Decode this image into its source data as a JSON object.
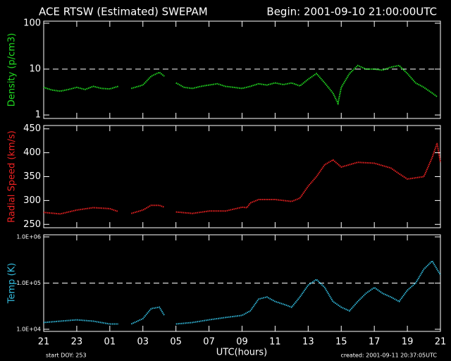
{
  "header": {
    "title": "ACE RTSW (Estimated) SWEPAM",
    "begin": "Begin: 2001-09-10 21:00:00UTC"
  },
  "footer": {
    "xlabel": "UTC(hours)",
    "start": "start DOY: 253",
    "created": "created: 2001-09-11 20:37:05UTC"
  },
  "chart_data": [
    {
      "type": "line",
      "ylabel": "Density (p/cm3)",
      "color": "#22dd22",
      "log": true,
      "reference_line": 10,
      "xlim": [
        0,
        24
      ],
      "xticks": [
        0,
        2,
        4,
        6,
        8,
        10,
        12,
        14,
        16,
        18,
        20,
        22,
        24
      ],
      "ylim": [
        0.84,
        111
      ],
      "yticks": [
        1,
        10,
        100
      ],
      "x": [
        0,
        0.5,
        1,
        1.5,
        2,
        2.5,
        3,
        3.5,
        4,
        4.5,
        4.9,
        5.3,
        6,
        6.5,
        7,
        7.3,
        7.6,
        8,
        8.5,
        9,
        9.5,
        10,
        10.5,
        11,
        11.5,
        12,
        12.5,
        13,
        13.5,
        14,
        14.5,
        15,
        15.5,
        16,
        16.5,
        17,
        17.5,
        17.8,
        18,
        18.5,
        19,
        19.5,
        20,
        20.5,
        21,
        21.5,
        22,
        22.5,
        23,
        23.5,
        23.8
      ],
      "values": [
        4,
        3.5,
        3.3,
        3.6,
        4,
        3.6,
        4.2,
        3.8,
        3.7,
        4.2,
        null,
        3.8,
        4.5,
        7,
        8.5,
        7,
        null,
        5,
        4,
        3.8,
        4.2,
        4.5,
        4.8,
        4.2,
        4,
        3.8,
        4.2,
        4.8,
        4.5,
        5,
        4.6,
        5,
        4.3,
        6,
        8,
        5,
        3,
        1.8,
        4,
        8,
        12,
        10,
        10,
        9.5,
        11,
        12,
        8,
        5,
        4,
        3,
        2.5
      ]
    },
    {
      "type": "line",
      "ylabel": "Radial Speed (km/s)",
      "color": "#ee2222",
      "log": false,
      "xlim": [
        0,
        24
      ],
      "xticks": [
        0,
        2,
        4,
        6,
        8,
        10,
        12,
        14,
        16,
        18,
        20,
        22,
        24
      ],
      "ylim": [
        243,
        457
      ],
      "yticks": [
        250,
        300,
        350,
        400,
        450
      ],
      "x": [
        0,
        1,
        2,
        3,
        4,
        4.5,
        4.9,
        5.3,
        6,
        6.5,
        7,
        7.3,
        7.6,
        8,
        9,
        10,
        11,
        12,
        12.3,
        12.5,
        13,
        14,
        15,
        15.5,
        16,
        16.5,
        17,
        17.5,
        18,
        19,
        20,
        21,
        21.5,
        22,
        23,
        23.5,
        23.8,
        24
      ],
      "values": [
        275,
        272,
        280,
        285,
        283,
        277,
        null,
        273,
        280,
        290,
        290,
        286,
        null,
        276,
        273,
        278,
        278,
        286,
        285,
        295,
        302,
        302,
        298,
        305,
        330,
        350,
        375,
        385,
        370,
        380,
        378,
        368,
        356,
        345,
        350,
        390,
        420,
        380
      ]
    },
    {
      "type": "line",
      "ylabel": "Temp (K)",
      "color": "#33bbdd",
      "log": true,
      "reference_line": 100000,
      "xlim": [
        0,
        24
      ],
      "xticks": [
        {
          "value": 0,
          "label": "21"
        },
        {
          "value": 2,
          "label": "23"
        },
        {
          "value": 4,
          "label": "01"
        },
        {
          "value": 6,
          "label": "03"
        },
        {
          "value": 8,
          "label": "05"
        },
        {
          "value": 10,
          "label": "07"
        },
        {
          "value": 12,
          "label": "09"
        },
        {
          "value": 14,
          "label": "11"
        },
        {
          "value": 16,
          "label": "13"
        },
        {
          "value": 18,
          "label": "15"
        },
        {
          "value": 20,
          "label": "17"
        },
        {
          "value": 22,
          "label": "19"
        },
        {
          "value": 24,
          "label": "21"
        }
      ],
      "ylim": [
        9000,
        1110000
      ],
      "yticks": [
        {
          "value": 10000,
          "label": "1.0E+04"
        },
        {
          "value": 100000,
          "label": "1.0E+05"
        },
        {
          "value": 1000000,
          "label": "1.0E+06"
        }
      ],
      "x": [
        0,
        1,
        2,
        3,
        4,
        4.5,
        4.9,
        5.3,
        6,
        6.5,
        7,
        7.3,
        7.6,
        8,
        9,
        10,
        11,
        12,
        12.5,
        13,
        13.5,
        14,
        14.5,
        15,
        15.5,
        16,
        16.5,
        17,
        17.5,
        18,
        18.5,
        19,
        19.5,
        20,
        20.5,
        21,
        21.5,
        22,
        22.5,
        23,
        23.5,
        24
      ],
      "values": [
        14000,
        15000,
        16000,
        15000,
        13000,
        13000,
        null,
        13000,
        17000,
        28000,
        30000,
        20000,
        null,
        13000,
        14000,
        16000,
        18000,
        20000,
        25000,
        45000,
        50000,
        40000,
        35000,
        30000,
        50000,
        90000,
        120000,
        80000,
        40000,
        30000,
        25000,
        40000,
        60000,
        80000,
        60000,
        50000,
        40000,
        70000,
        100000,
        200000,
        300000,
        150000
      ]
    }
  ]
}
